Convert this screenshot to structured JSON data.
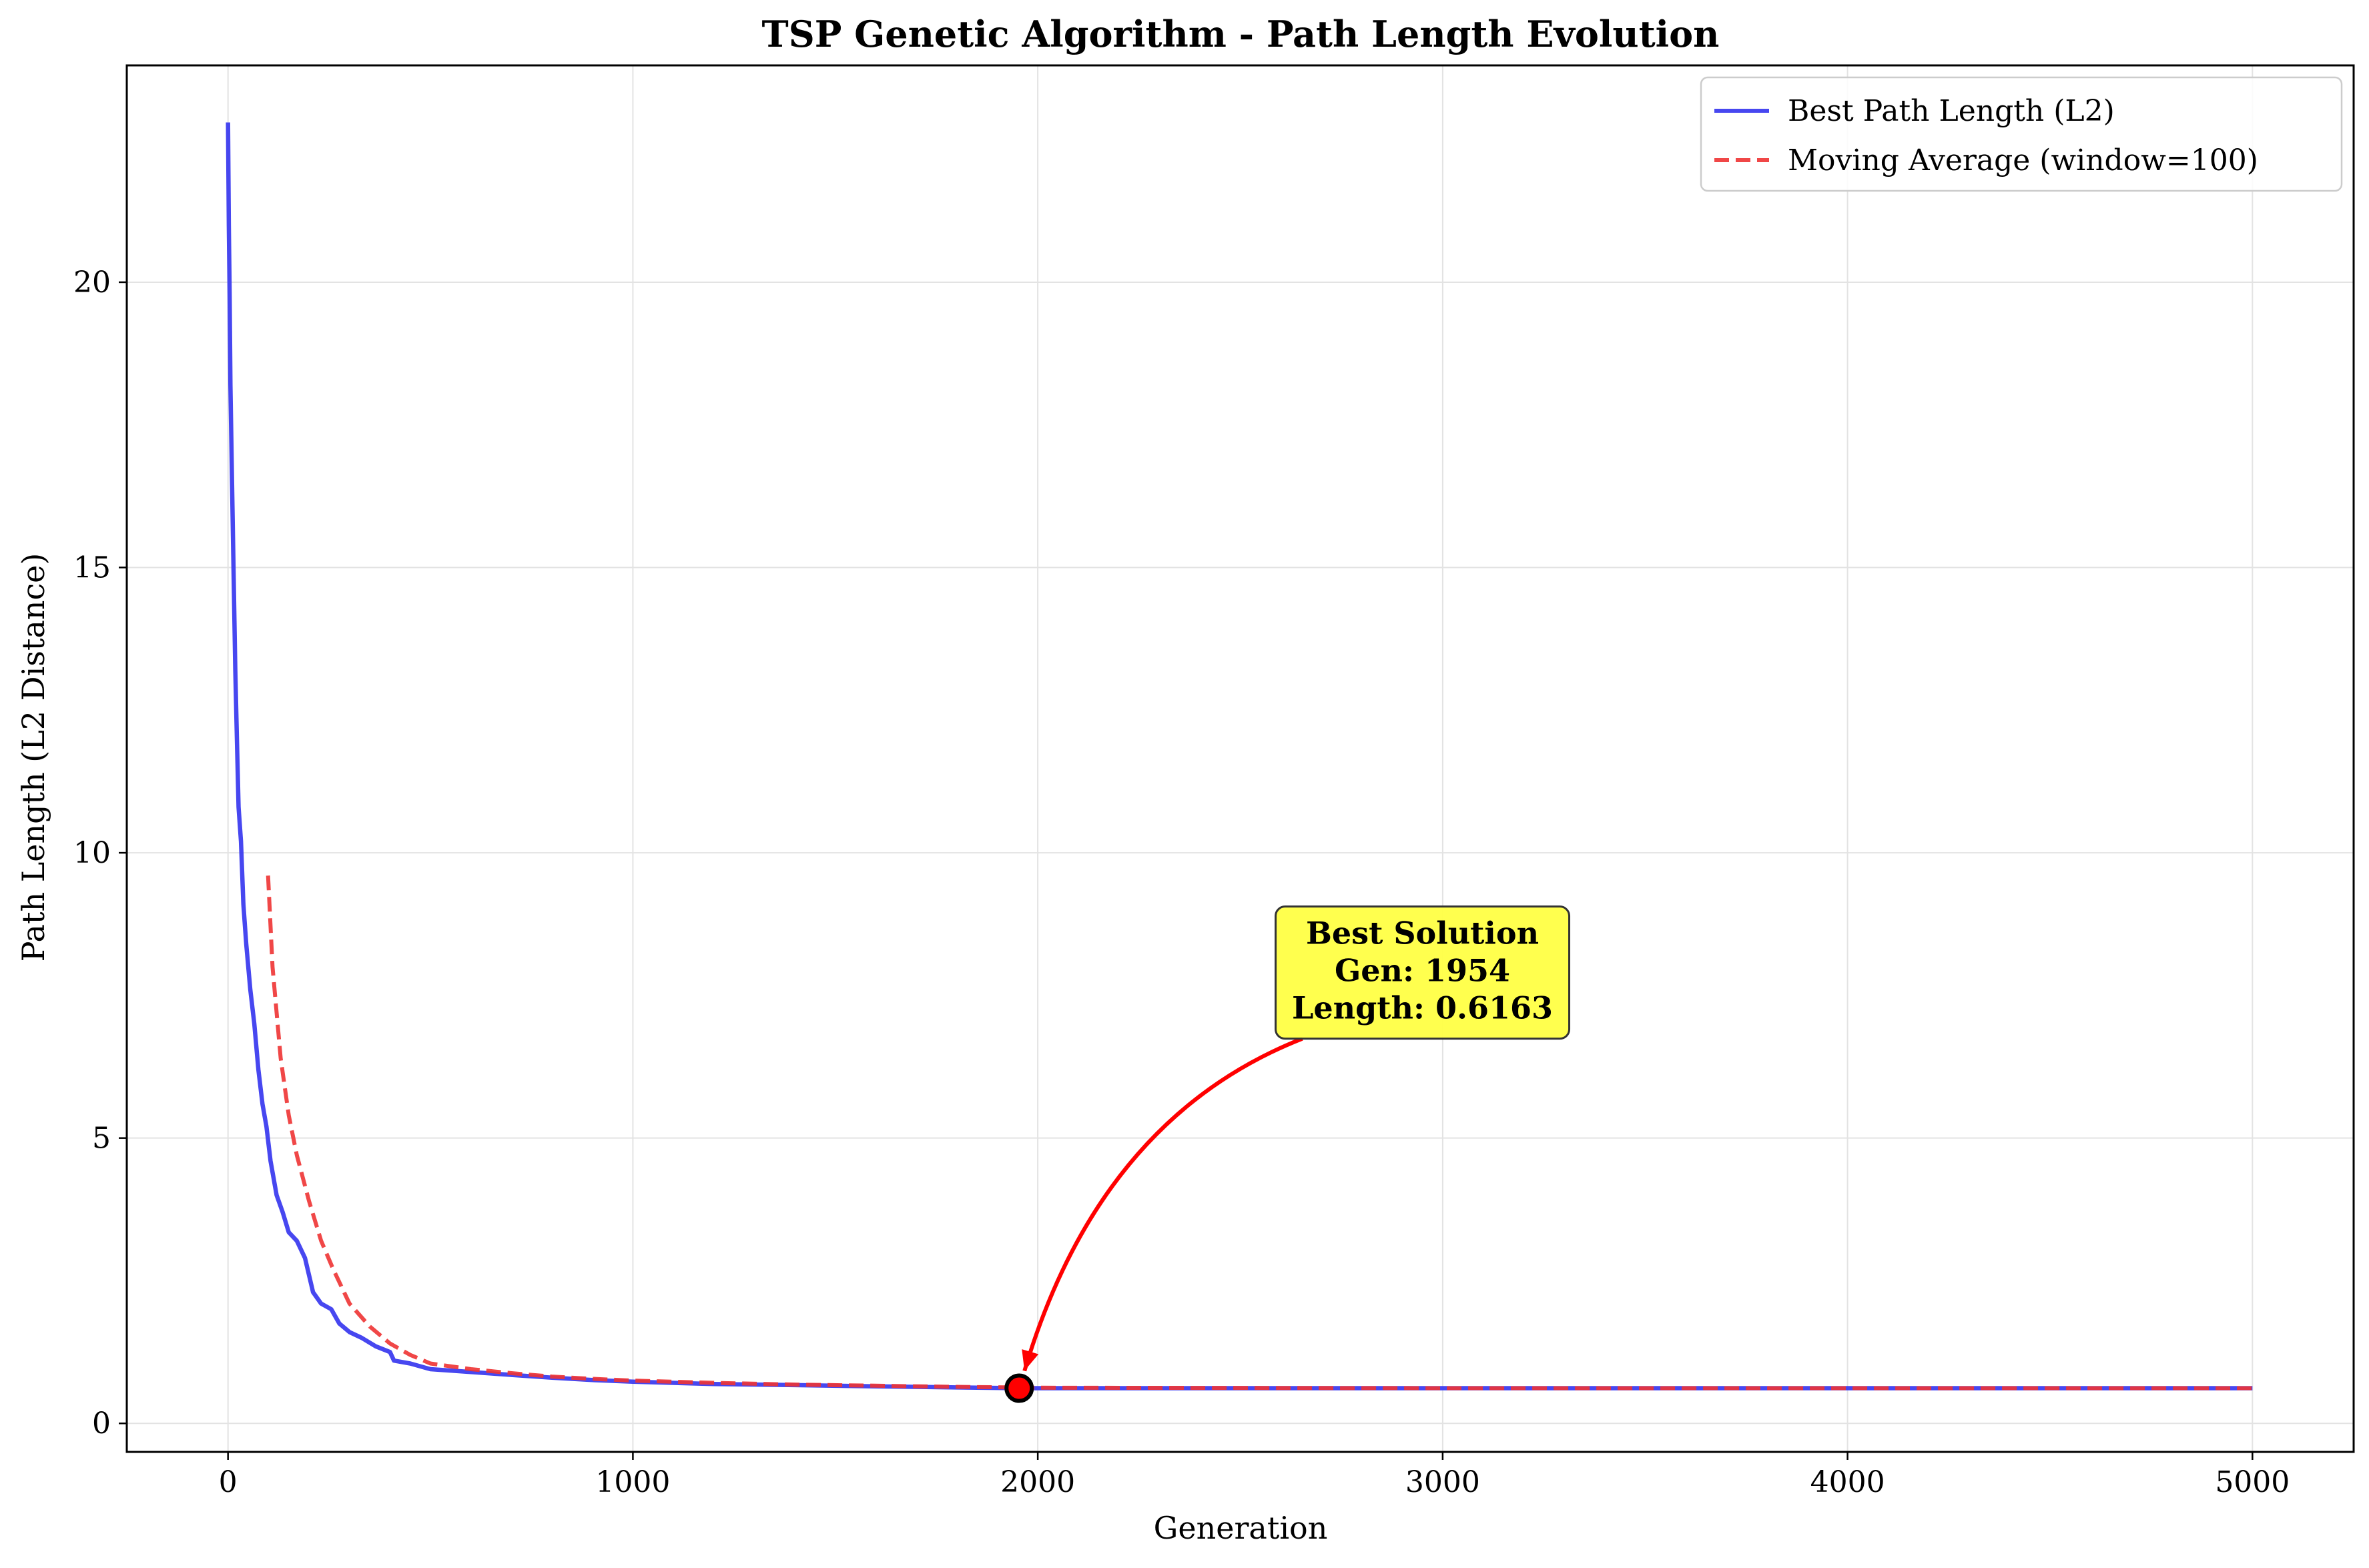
{
  "chart_data": {
    "type": "line",
    "title": "TSP Genetic Algorithm - Path Length Evolution",
    "xlabel": "Generation",
    "ylabel": "Path Length (L2 Distance)",
    "xlim": [
      -250,
      5250
    ],
    "ylim": [
      -0.5,
      23.8
    ],
    "xticks": [
      0,
      1000,
      2000,
      3000,
      4000,
      5000
    ],
    "yticks": [
      0,
      5,
      10,
      15,
      20
    ],
    "grid": true,
    "legend_position": "top-right",
    "series": [
      {
        "name": "Best Path Length (L2)",
        "color": "#3333ee",
        "style": "solid",
        "points": [
          [
            0,
            22.8
          ],
          [
            2,
            21.0
          ],
          [
            4,
            19.8
          ],
          [
            6,
            18.2
          ],
          [
            10,
            16.5
          ],
          [
            14,
            14.8
          ],
          [
            18,
            13.2
          ],
          [
            22,
            12.0
          ],
          [
            26,
            10.8
          ],
          [
            32,
            10.2
          ],
          [
            38,
            9.1
          ],
          [
            45,
            8.4
          ],
          [
            55,
            7.6
          ],
          [
            65,
            7.0
          ],
          [
            75,
            6.2
          ],
          [
            85,
            5.6
          ],
          [
            95,
            5.2
          ],
          [
            105,
            4.6
          ],
          [
            120,
            4.0
          ],
          [
            135,
            3.7
          ],
          [
            150,
            3.35
          ],
          [
            170,
            3.2
          ],
          [
            190,
            2.9
          ],
          [
            210,
            2.3
          ],
          [
            230,
            2.1
          ],
          [
            255,
            2.0
          ],
          [
            275,
            1.75
          ],
          [
            300,
            1.6
          ],
          [
            330,
            1.5
          ],
          [
            365,
            1.35
          ],
          [
            400,
            1.25
          ],
          [
            410,
            1.1
          ],
          [
            450,
            1.05
          ],
          [
            500,
            0.95
          ],
          [
            600,
            0.9
          ],
          [
            700,
            0.85
          ],
          [
            800,
            0.8
          ],
          [
            900,
            0.76
          ],
          [
            1000,
            0.73
          ],
          [
            1200,
            0.69
          ],
          [
            1400,
            0.67
          ],
          [
            1600,
            0.65
          ],
          [
            1800,
            0.63
          ],
          [
            1954,
            0.6163
          ],
          [
            2500,
            0.6163
          ],
          [
            3000,
            0.6163
          ],
          [
            4000,
            0.6163
          ],
          [
            5000,
            0.6163
          ]
        ]
      },
      {
        "name": "Moving Average (window=100)",
        "color": "#ee3333",
        "style": "dashed",
        "points": [
          [
            99,
            9.6
          ],
          [
            110,
            8.0
          ],
          [
            130,
            6.4
          ],
          [
            150,
            5.4
          ],
          [
            170,
            4.7
          ],
          [
            200,
            3.9
          ],
          [
            230,
            3.2
          ],
          [
            260,
            2.7
          ],
          [
            300,
            2.1
          ],
          [
            350,
            1.7
          ],
          [
            400,
            1.4
          ],
          [
            450,
            1.2
          ],
          [
            500,
            1.05
          ],
          [
            600,
            0.95
          ],
          [
            700,
            0.88
          ],
          [
            800,
            0.82
          ],
          [
            900,
            0.78
          ],
          [
            1000,
            0.75
          ],
          [
            1200,
            0.71
          ],
          [
            1400,
            0.68
          ],
          [
            1600,
            0.66
          ],
          [
            1800,
            0.64
          ],
          [
            2000,
            0.625
          ],
          [
            3000,
            0.6163
          ],
          [
            4000,
            0.6163
          ],
          [
            5000,
            0.6163
          ]
        ]
      }
    ],
    "annotation": {
      "lines": [
        "Best Solution",
        "Gen: 1954",
        "Length: 0.6163"
      ],
      "point": [
        1954,
        0.6163
      ],
      "text_position": [
        2950,
        7.9
      ],
      "box_color": "#ffff44",
      "arrow_color": "#ff0000",
      "marker_color": "#ff0000"
    }
  }
}
